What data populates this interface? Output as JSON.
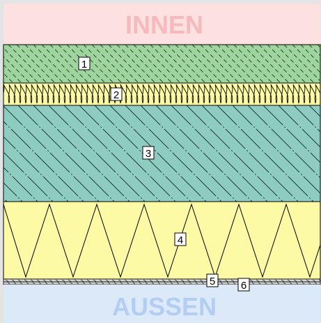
{
  "zones": {
    "inside": {
      "label": "INNEN",
      "fill": "#fde1e1",
      "text_color": "#f6b9bd"
    },
    "outside": {
      "label": "AUSSEN",
      "fill": "#dce9f9",
      "text_color": "#b3cef2"
    }
  },
  "layers": [
    {
      "number": "1",
      "pattern": "dashed-hatch",
      "fill": "#9fd49f"
    },
    {
      "number": "2",
      "pattern": "soft-insulation",
      "fill": "#fdfaa6"
    },
    {
      "number": "3",
      "pattern": "diagonal-hatch",
      "fill": "#8ecbc0"
    },
    {
      "number": "4",
      "pattern": "zigzag-insulation",
      "fill": "#fdfaa6"
    },
    {
      "number": "5",
      "pattern": "thin-render",
      "fill": "#d8d8d8"
    },
    {
      "number": "6",
      "pattern": "thin-finish",
      "fill": "#cfcfcf"
    }
  ],
  "frame_color": "#e4e4e4"
}
